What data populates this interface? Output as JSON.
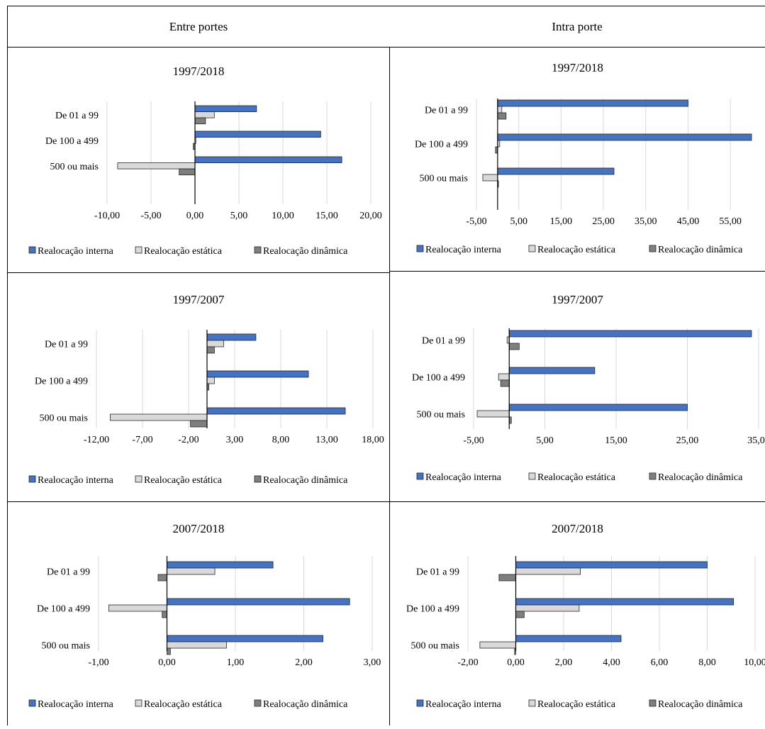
{
  "headers": {
    "left": "Entre portes",
    "right": "Intra porte"
  },
  "colors": {
    "interna": "#4472c4",
    "estatica": "#d9d9d9",
    "dinamica": "#7f7f7f",
    "grid": "#d9d9d9"
  },
  "chart_data": [
    {
      "type": "bar",
      "orientation": "horizontal",
      "title": "1997/2018",
      "group": "Entre portes",
      "categories": [
        "De 01 a 99",
        "De 100 a 499",
        "500 ou mais"
      ],
      "series": [
        {
          "name": "Realocação interna",
          "values": [
            7.0,
            14.3,
            16.7
          ]
        },
        {
          "name": "Realocação estática",
          "values": [
            2.2,
            0.0,
            -8.8
          ]
        },
        {
          "name": "Realocação dinâmica",
          "values": [
            1.2,
            -0.2,
            -1.8
          ]
        }
      ],
      "xlim": [
        -10,
        20
      ],
      "xticks": [
        "-10,00",
        "-5,00",
        "0,00",
        "5,00",
        "10,00",
        "15,00",
        "20,00"
      ],
      "tick_values": [
        -10,
        -5,
        0,
        5,
        10,
        15,
        20
      ]
    },
    {
      "type": "bar",
      "orientation": "horizontal",
      "title": "1997/2018",
      "group": "Intra porte",
      "categories": [
        "De 01 a 99",
        "De 100 a 499",
        "500 ou mais"
      ],
      "series": [
        {
          "name": "Realocação interna",
          "values": [
            45.0,
            60.0,
            27.5
          ]
        },
        {
          "name": "Realocação estática",
          "values": [
            1.0,
            0.5,
            -3.5
          ]
        },
        {
          "name": "Realocação dinâmica",
          "values": [
            2.0,
            -0.5,
            0.2
          ]
        }
      ],
      "xlim": [
        -5,
        60
      ],
      "xticks": [
        "-5,00",
        "5,00",
        "15,00",
        "25,00",
        "35,00",
        "45,00",
        "55,00"
      ],
      "tick_values": [
        -5,
        5,
        15,
        25,
        35,
        45,
        55
      ]
    },
    {
      "type": "bar",
      "orientation": "horizontal",
      "title": "1997/2007",
      "group": "Entre portes",
      "categories": [
        "De 01 a 99",
        "De 100 a 499",
        "500 ou mais"
      ],
      "series": [
        {
          "name": "Realocação interna",
          "values": [
            5.3,
            11.0,
            15.0
          ]
        },
        {
          "name": "Realocação estática",
          "values": [
            1.8,
            0.8,
            -10.5
          ]
        },
        {
          "name": "Realocação dinâmica",
          "values": [
            0.8,
            0.2,
            -1.8
          ]
        }
      ],
      "xlim": [
        -12,
        18
      ],
      "xticks": [
        "-12,00",
        "-7,00",
        "-2,00",
        "3,00",
        "8,00",
        "13,00",
        "18,00"
      ],
      "tick_values": [
        -12,
        -7,
        -2,
        3,
        8,
        13,
        18
      ]
    },
    {
      "type": "bar",
      "orientation": "horizontal",
      "title": "1997/2007",
      "group": "Intra porte",
      "categories": [
        "De 01 a 99",
        "De 100 a 499",
        "500 ou mais"
      ],
      "series": [
        {
          "name": "Realocação interna",
          "values": [
            34.0,
            12.0,
            25.0
          ]
        },
        {
          "name": "Realocação estática",
          "values": [
            -0.3,
            -1.5,
            -4.5
          ]
        },
        {
          "name": "Realocação dinâmica",
          "values": [
            1.4,
            -1.2,
            0.3
          ]
        }
      ],
      "xlim": [
        -5,
        35
      ],
      "xticks": [
        "-5,00",
        "5,00",
        "15,00",
        "25,00",
        "35,00"
      ],
      "tick_values": [
        -5,
        5,
        15,
        25,
        35
      ]
    },
    {
      "type": "bar",
      "orientation": "horizontal",
      "title": "2007/2018",
      "group": "Entre portes",
      "categories": [
        "De 01 a 99",
        "De 100 a 499",
        "500 ou mais"
      ],
      "series": [
        {
          "name": "Realocação interna",
          "values": [
            1.55,
            2.67,
            2.28
          ]
        },
        {
          "name": "Realocação estática",
          "values": [
            0.7,
            -0.85,
            0.87
          ]
        },
        {
          "name": "Realocação dinâmica",
          "values": [
            -0.13,
            -0.07,
            0.05
          ]
        }
      ],
      "xlim": [
        -1,
        3
      ],
      "xticks": [
        "-1,00",
        "0,00",
        "1,00",
        "2,00",
        "3,00"
      ],
      "tick_values": [
        -1,
        0,
        1,
        2,
        3
      ]
    },
    {
      "type": "bar",
      "orientation": "horizontal",
      "title": "2007/2018",
      "group": "Intra porte",
      "categories": [
        "De 01 a 99",
        "De 100 a 499",
        "500 ou mais"
      ],
      "series": [
        {
          "name": "Realocação interna",
          "values": [
            8.0,
            9.1,
            4.4
          ]
        },
        {
          "name": "Realocação estática",
          "values": [
            2.7,
            2.65,
            -1.5
          ]
        },
        {
          "name": "Realocação dinâmica",
          "values": [
            -0.7,
            0.35,
            -0.05
          ]
        }
      ],
      "xlim": [
        -2,
        10
      ],
      "xticks": [
        "-2,00",
        "0,00",
        "2,00",
        "4,00",
        "6,00",
        "8,00",
        "10,00"
      ],
      "tick_values": [
        -2,
        0,
        2,
        4,
        6,
        8,
        10
      ]
    }
  ]
}
